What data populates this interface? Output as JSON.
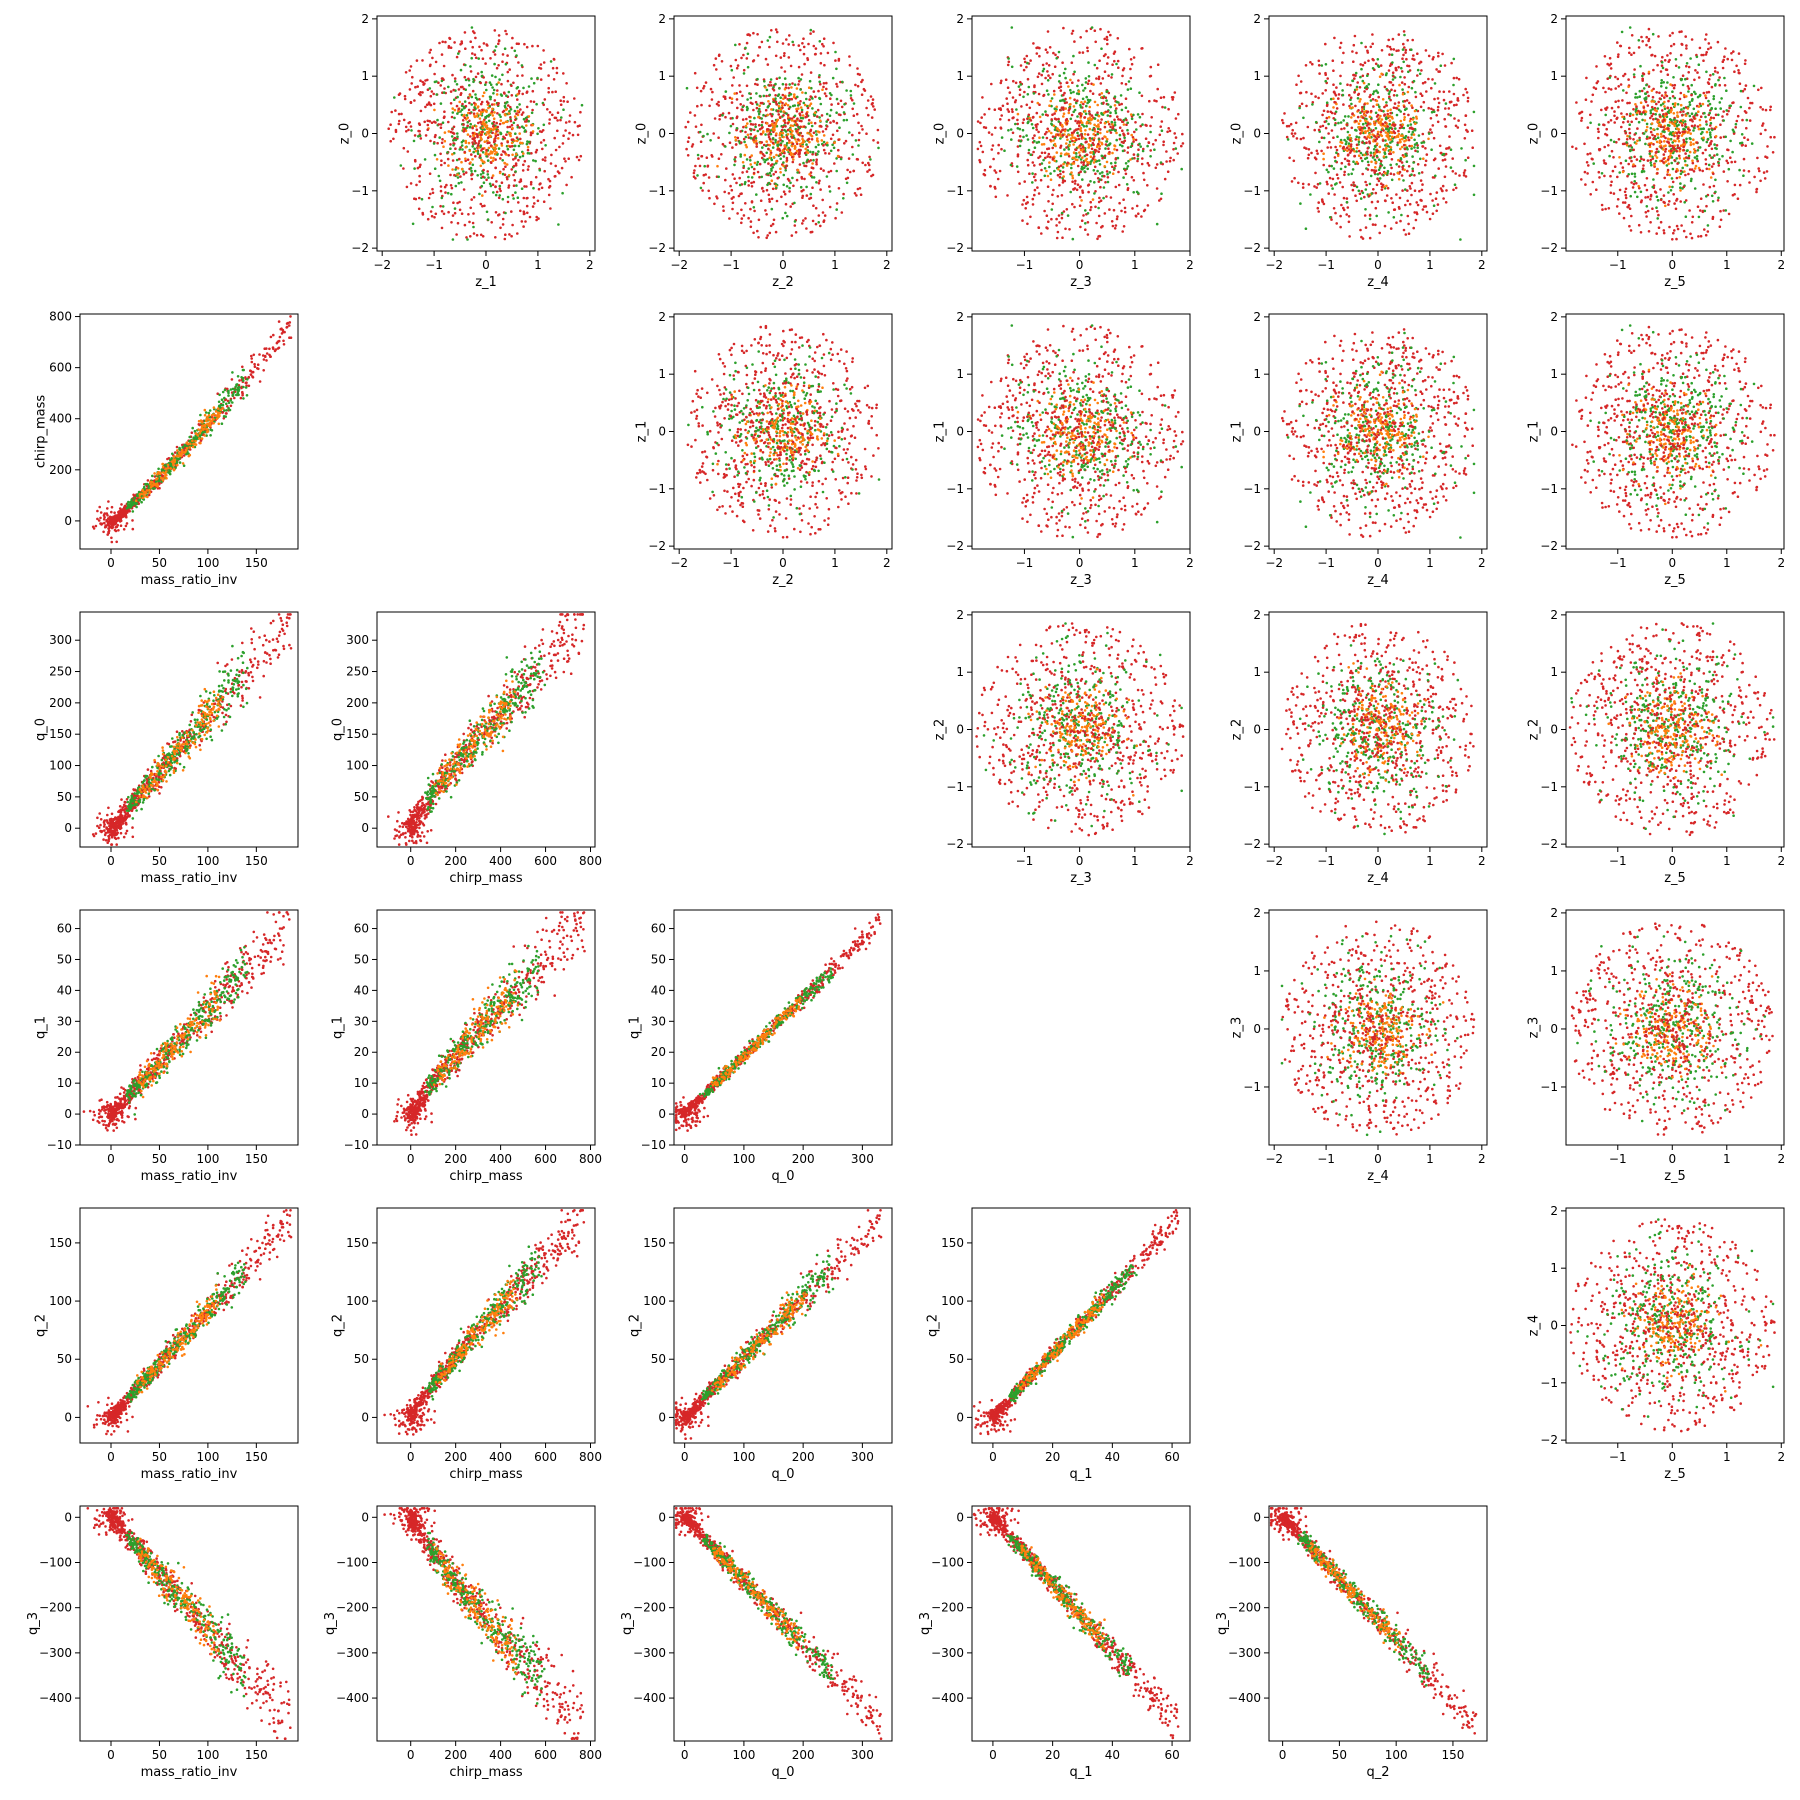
{
  "chart_data": {
    "type": "scatter",
    "layout": "pairwise scatter matrix, 6 rows x 6 columns",
    "grid": false,
    "legend": "none",
    "point_colors": [
      "#d62728",
      "#2ca02c",
      "#ff7f0e"
    ],
    "panels": [
      {
        "row": 0,
        "col": 1,
        "xlabel": "z_1",
        "ylabel": "z_0",
        "kind": "gauss",
        "xlim": [
          -2.1,
          2.1
        ],
        "ylim": [
          -2.05,
          2.05
        ],
        "xticks": [
          -2,
          -1,
          0,
          1,
          2
        ],
        "yticks": [
          -2,
          -1,
          0,
          1,
          2
        ]
      },
      {
        "row": 0,
        "col": 2,
        "xlabel": "z_2",
        "ylabel": "z_0",
        "kind": "gauss",
        "xlim": [
          -2.1,
          2.1
        ],
        "ylim": [
          -2.05,
          2.05
        ],
        "xticks": [
          -2,
          -1,
          0,
          1,
          2
        ],
        "yticks": [
          -2,
          -1,
          0,
          1,
          2
        ]
      },
      {
        "row": 0,
        "col": 3,
        "xlabel": "z_3",
        "ylabel": "z_0",
        "kind": "gauss",
        "xlim": [
          -1.95,
          2.0
        ],
        "ylim": [
          -2.05,
          2.05
        ],
        "xticks": [
          -1,
          0,
          1,
          2
        ],
        "yticks": [
          -2,
          -1,
          0,
          1,
          2
        ]
      },
      {
        "row": 0,
        "col": 4,
        "xlabel": "z_4",
        "ylabel": "z_0",
        "kind": "gauss",
        "xlim": [
          -2.1,
          2.1
        ],
        "ylim": [
          -2.05,
          2.05
        ],
        "xticks": [
          -2,
          -1,
          0,
          1,
          2
        ],
        "yticks": [
          -2,
          -1,
          0,
          1,
          2
        ]
      },
      {
        "row": 0,
        "col": 5,
        "xlabel": "z_5",
        "ylabel": "z_0",
        "kind": "gauss",
        "xlim": [
          -1.95,
          2.05
        ],
        "ylim": [
          -2.05,
          2.05
        ],
        "xticks": [
          -1,
          0,
          1,
          2
        ],
        "yticks": [
          -2,
          -1,
          0,
          1,
          2
        ]
      },
      {
        "row": 1,
        "col": 0,
        "xlabel": "mass_ratio_inv",
        "ylabel": "chirp_mass",
        "kind": "lin",
        "x0": 0,
        "x1": 185,
        "y0": 0,
        "y1": 770,
        "curve": 1.15,
        "noise": 0.03,
        "neg": 0.05,
        "xlim": [
          -32,
          193
        ],
        "ylim": [
          -110,
          810
        ],
        "xticks": [
          0,
          50,
          100,
          150
        ],
        "yticks": [
          0,
          200,
          400,
          600,
          800
        ]
      },
      {
        "row": 1,
        "col": 2,
        "xlabel": "z_2",
        "ylabel": "z_1",
        "kind": "gauss",
        "xlim": [
          -2.1,
          2.1
        ],
        "ylim": [
          -2.05,
          2.05
        ],
        "xticks": [
          -2,
          -1,
          0,
          1,
          2
        ],
        "yticks": [
          -2,
          -1,
          0,
          1,
          2
        ]
      },
      {
        "row": 1,
        "col": 3,
        "xlabel": "z_3",
        "ylabel": "z_1",
        "kind": "gauss",
        "xlim": [
          -1.95,
          2.0
        ],
        "ylim": [
          -2.05,
          2.05
        ],
        "xticks": [
          -1,
          0,
          1,
          2
        ],
        "yticks": [
          -2,
          -1,
          0,
          1,
          2
        ]
      },
      {
        "row": 1,
        "col": 4,
        "xlabel": "z_4",
        "ylabel": "z_1",
        "kind": "gauss",
        "xlim": [
          -2.1,
          2.1
        ],
        "ylim": [
          -2.05,
          2.05
        ],
        "xticks": [
          -2,
          -1,
          0,
          1,
          2
        ],
        "yticks": [
          -2,
          -1,
          0,
          1,
          2
        ]
      },
      {
        "row": 1,
        "col": 5,
        "xlabel": "z_5",
        "ylabel": "z_1",
        "kind": "gauss",
        "xlim": [
          -1.95,
          2.05
        ],
        "ylim": [
          -2.05,
          2.05
        ],
        "xticks": [
          -1,
          0,
          1,
          2
        ],
        "yticks": [
          -2,
          -1,
          0,
          1,
          2
        ]
      },
      {
        "row": 2,
        "col": 0,
        "xlabel": "mass_ratio_inv",
        "ylabel": "q_0",
        "kind": "lin",
        "x0": 0,
        "x1": 185,
        "y0": 0,
        "y1": 330,
        "curve": 1.0,
        "noise": 0.06,
        "neg": 0.05,
        "xlim": [
          -32,
          193
        ],
        "ylim": [
          -30,
          345
        ],
        "xticks": [
          0,
          50,
          100,
          150
        ],
        "yticks": [
          0,
          50,
          100,
          150,
          200,
          250,
          300
        ]
      },
      {
        "row": 2,
        "col": 1,
        "xlabel": "chirp_mass",
        "ylabel": "q_0",
        "kind": "lin",
        "x0": 0,
        "x1": 770,
        "y0": 0,
        "y1": 330,
        "curve": 0.88,
        "noise": 0.07,
        "neg": 0.05,
        "xlim": [
          -150,
          820
        ],
        "ylim": [
          -30,
          345
        ],
        "xticks": [
          0,
          200,
          400,
          600,
          800
        ],
        "yticks": [
          0,
          50,
          100,
          150,
          200,
          250,
          300
        ]
      },
      {
        "row": 2,
        "col": 3,
        "xlabel": "z_3",
        "ylabel": "z_2",
        "kind": "gauss",
        "xlim": [
          -1.95,
          2.0
        ],
        "ylim": [
          -2.05,
          2.05
        ],
        "xticks": [
          -1,
          0,
          1,
          2
        ],
        "yticks": [
          -2,
          -1,
          0,
          1,
          2
        ]
      },
      {
        "row": 2,
        "col": 4,
        "xlabel": "z_4",
        "ylabel": "z_2",
        "kind": "gauss",
        "xlim": [
          -2.1,
          2.1
        ],
        "ylim": [
          -2.05,
          2.05
        ],
        "xticks": [
          -2,
          -1,
          0,
          1,
          2
        ],
        "yticks": [
          -2,
          -1,
          0,
          1,
          2
        ]
      },
      {
        "row": 2,
        "col": 5,
        "xlabel": "z_5",
        "ylabel": "z_2",
        "kind": "gauss",
        "xlim": [
          -1.95,
          2.05
        ],
        "ylim": [
          -2.05,
          2.05
        ],
        "xticks": [
          -1,
          0,
          1,
          2
        ],
        "yticks": [
          -2,
          -1,
          0,
          1,
          2
        ]
      },
      {
        "row": 3,
        "col": 0,
        "xlabel": "mass_ratio_inv",
        "ylabel": "q_1",
        "kind": "lin",
        "x0": 0,
        "x1": 185,
        "y0": 0,
        "y1": 62,
        "curve": 1.0,
        "noise": 0.06,
        "neg": 0.05,
        "xlim": [
          -32,
          193
        ],
        "ylim": [
          -10,
          66
        ],
        "xticks": [
          0,
          50,
          100,
          150
        ],
        "yticks": [
          -10,
          0,
          10,
          20,
          30,
          40,
          50,
          60
        ]
      },
      {
        "row": 3,
        "col": 1,
        "xlabel": "chirp_mass",
        "ylabel": "q_1",
        "kind": "lin",
        "x0": 0,
        "x1": 770,
        "y0": 0,
        "y1": 62,
        "curve": 0.88,
        "noise": 0.07,
        "neg": 0.05,
        "xlim": [
          -150,
          820
        ],
        "ylim": [
          -10,
          66
        ],
        "xticks": [
          0,
          200,
          400,
          600,
          800
        ],
        "yticks": [
          -10,
          0,
          10,
          20,
          30,
          40,
          50,
          60
        ]
      },
      {
        "row": 3,
        "col": 2,
        "xlabel": "q_0",
        "ylabel": "q_1",
        "kind": "lin",
        "x0": 0,
        "x1": 330,
        "y0": 0,
        "y1": 62,
        "curve": 1.0,
        "noise": 0.02,
        "neg": 0.05,
        "xlim": [
          -18,
          350
        ],
        "ylim": [
          -10,
          66
        ],
        "xticks": [
          0,
          100,
          200,
          300
        ],
        "yticks": [
          -10,
          0,
          10,
          20,
          30,
          40,
          50,
          60
        ]
      },
      {
        "row": 3,
        "col": 4,
        "xlabel": "z_4",
        "ylabel": "z_3",
        "kind": "gauss",
        "xlim": [
          -2.1,
          2.1
        ],
        "ylim": [
          -2.0,
          2.05
        ],
        "xticks": [
          -2,
          -1,
          0,
          1,
          2
        ],
        "yticks": [
          -1,
          0,
          1,
          2
        ]
      },
      {
        "row": 3,
        "col": 5,
        "xlabel": "z_5",
        "ylabel": "z_3",
        "kind": "gauss",
        "xlim": [
          -1.95,
          2.05
        ],
        "ylim": [
          -2.0,
          2.05
        ],
        "xticks": [
          -1,
          0,
          1,
          2
        ],
        "yticks": [
          -1,
          0,
          1,
          2
        ]
      },
      {
        "row": 4,
        "col": 0,
        "xlabel": "mass_ratio_inv",
        "ylabel": "q_2",
        "kind": "lin",
        "x0": 0,
        "x1": 185,
        "y0": 0,
        "y1": 170,
        "curve": 1.0,
        "noise": 0.04,
        "neg": 0.05,
        "xlim": [
          -32,
          193
        ],
        "ylim": [
          -22,
          180
        ],
        "xticks": [
          0,
          50,
          100,
          150
        ],
        "yticks": [
          0,
          50,
          100,
          150
        ]
      },
      {
        "row": 4,
        "col": 1,
        "xlabel": "chirp_mass",
        "ylabel": "q_2",
        "kind": "lin",
        "x0": 0,
        "x1": 770,
        "y0": 0,
        "y1": 170,
        "curve": 0.88,
        "noise": 0.05,
        "neg": 0.05,
        "xlim": [
          -150,
          820
        ],
        "ylim": [
          -22,
          180
        ],
        "xticks": [
          0,
          200,
          400,
          600,
          800
        ],
        "yticks": [
          0,
          50,
          100,
          150
        ]
      },
      {
        "row": 4,
        "col": 2,
        "xlabel": "q_0",
        "ylabel": "q_2",
        "kind": "lin",
        "x0": 0,
        "x1": 330,
        "y0": 0,
        "y1": 170,
        "curve": 1.0,
        "noise": 0.04,
        "neg": 0.05,
        "xlim": [
          -18,
          350
        ],
        "ylim": [
          -22,
          180
        ],
        "xticks": [
          0,
          100,
          200,
          300
        ],
        "yticks": [
          0,
          50,
          100,
          150
        ]
      },
      {
        "row": 4,
        "col": 3,
        "xlabel": "q_1",
        "ylabel": "q_2",
        "kind": "lin",
        "x0": 0,
        "x1": 62,
        "y0": 0,
        "y1": 170,
        "curve": 1.0,
        "noise": 0.025,
        "neg": 0.05,
        "xlim": [
          -7,
          66
        ],
        "ylim": [
          -22,
          180
        ],
        "xticks": [
          0,
          20,
          40,
          60
        ],
        "yticks": [
          0,
          50,
          100,
          150
        ]
      },
      {
        "row": 4,
        "col": 5,
        "xlabel": "z_5",
        "ylabel": "z_4",
        "kind": "gauss",
        "xlim": [
          -1.95,
          2.05
        ],
        "ylim": [
          -2.05,
          2.05
        ],
        "xticks": [
          -1,
          0,
          1,
          2
        ],
        "yticks": [
          -2,
          -1,
          0,
          1,
          2
        ]
      },
      {
        "row": 5,
        "col": 0,
        "xlabel": "mass_ratio_inv",
        "ylabel": "q_3",
        "kind": "lin",
        "x0": 0,
        "x1": 185,
        "y0": 0,
        "y1": -460,
        "curve": 1.0,
        "noise": 0.06,
        "neg": 0.05,
        "xlim": [
          -32,
          193
        ],
        "ylim": [
          -495,
          25
        ],
        "xticks": [
          0,
          50,
          100,
          150
        ],
        "yticks": [
          -400,
          -300,
          -200,
          -100,
          0
        ]
      },
      {
        "row": 5,
        "col": 1,
        "xlabel": "chirp_mass",
        "ylabel": "q_3",
        "kind": "lin",
        "x0": 0,
        "x1": 770,
        "y0": 0,
        "y1": -460,
        "curve": 0.88,
        "noise": 0.07,
        "neg": 0.05,
        "xlim": [
          -150,
          820
        ],
        "ylim": [
          -495,
          25
        ],
        "xticks": [
          0,
          200,
          400,
          600,
          800
        ],
        "yticks": [
          -400,
          -300,
          -200,
          -100,
          0
        ]
      },
      {
        "row": 5,
        "col": 2,
        "xlabel": "q_0",
        "ylabel": "q_3",
        "kind": "lin",
        "x0": 0,
        "x1": 330,
        "y0": 0,
        "y1": -460,
        "curve": 1.0,
        "noise": 0.035,
        "neg": 0.05,
        "xlim": [
          -18,
          350
        ],
        "ylim": [
          -495,
          25
        ],
        "xticks": [
          0,
          100,
          200,
          300
        ],
        "yticks": [
          -400,
          -300,
          -200,
          -100,
          0
        ]
      },
      {
        "row": 5,
        "col": 3,
        "xlabel": "q_1",
        "ylabel": "q_3",
        "kind": "lin",
        "x0": 0,
        "x1": 62,
        "y0": 0,
        "y1": -460,
        "curve": 1.0,
        "noise": 0.035,
        "neg": 0.05,
        "xlim": [
          -7,
          66
        ],
        "ylim": [
          -495,
          25
        ],
        "xticks": [
          0,
          20,
          40,
          60
        ],
        "yticks": [
          -400,
          -300,
          -200,
          -100,
          0
        ]
      },
      {
        "row": 5,
        "col": 4,
        "xlabel": "q_2",
        "ylabel": "q_3",
        "kind": "lin",
        "x0": 0,
        "x1": 170,
        "y0": 0,
        "y1": -460,
        "curve": 1.0,
        "noise": 0.035,
        "neg": 0.05,
        "xlim": [
          -12,
          180
        ],
        "ylim": [
          -495,
          25
        ],
        "xticks": [
          0,
          50,
          100,
          150
        ],
        "yticks": [
          -400,
          -300,
          -200,
          -100,
          0
        ]
      }
    ]
  }
}
